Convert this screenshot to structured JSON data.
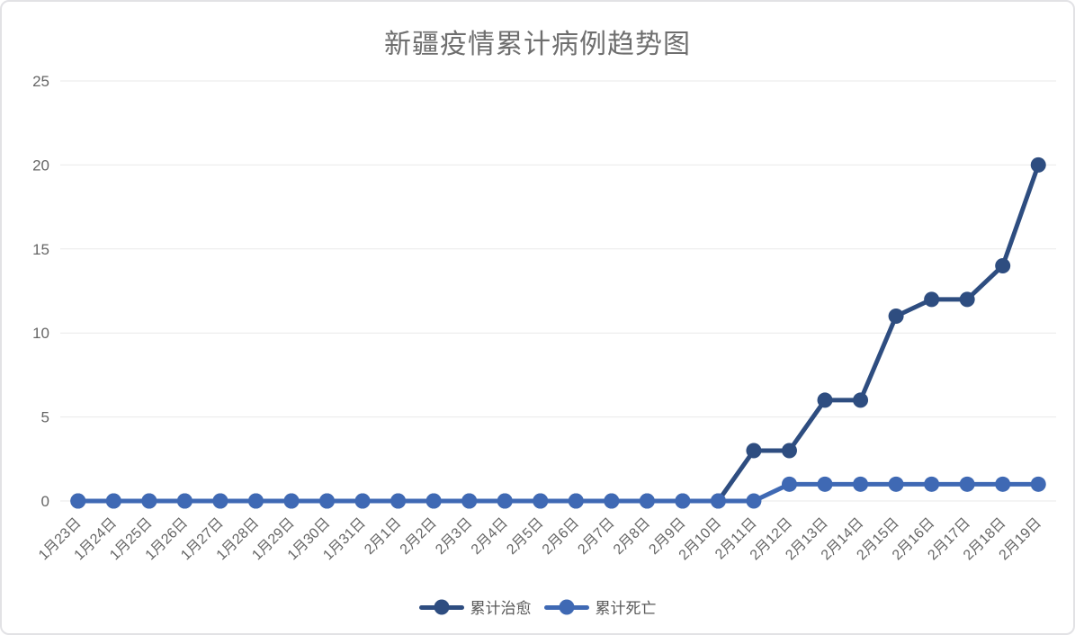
{
  "page": {
    "background": "#ffffff",
    "border_color": "#e2e2e5"
  },
  "chart_data": {
    "type": "line",
    "title": "新疆疫情累计病例趋势图",
    "title_color": "#6e6e6e",
    "axis_label_color": "#666666",
    "grid_color": "#e9e9e9",
    "grid": true,
    "legend_position": "bottom",
    "categories": [
      "1月23日",
      "1月24日",
      "1月25日",
      "1月26日",
      "1月27日",
      "1月28日",
      "1月29日",
      "1月30日",
      "1月31日",
      "2月1日",
      "2月2日",
      "2月3日",
      "2月4日",
      "2月5日",
      "2月6日",
      "2月7日",
      "2月8日",
      "2月9日",
      "2月10日",
      "2月11日",
      "2月12日",
      "2月13日",
      "2月14日",
      "2月15日",
      "2月16日",
      "2月17日",
      "2月18日",
      "2月19日"
    ],
    "series": [
      {
        "name": "累计治愈",
        "color": "#2e4d80",
        "values": [
          0,
          0,
          0,
          0,
          0,
          0,
          0,
          0,
          0,
          0,
          0,
          0,
          0,
          0,
          0,
          0,
          0,
          0,
          0,
          3,
          3,
          6,
          6,
          11,
          12,
          12,
          14,
          20
        ]
      },
      {
        "name": "累计死亡",
        "color": "#3f69b4",
        "values": [
          0,
          0,
          0,
          0,
          0,
          0,
          0,
          0,
          0,
          0,
          0,
          0,
          0,
          0,
          0,
          0,
          0,
          0,
          0,
          0,
          1,
          1,
          1,
          1,
          1,
          1,
          1,
          1
        ]
      }
    ],
    "yticks": [
      0,
      5,
      10,
      15,
      20,
      25
    ],
    "ylim": [
      0,
      25
    ],
    "xlabel": "",
    "ylabel": ""
  }
}
